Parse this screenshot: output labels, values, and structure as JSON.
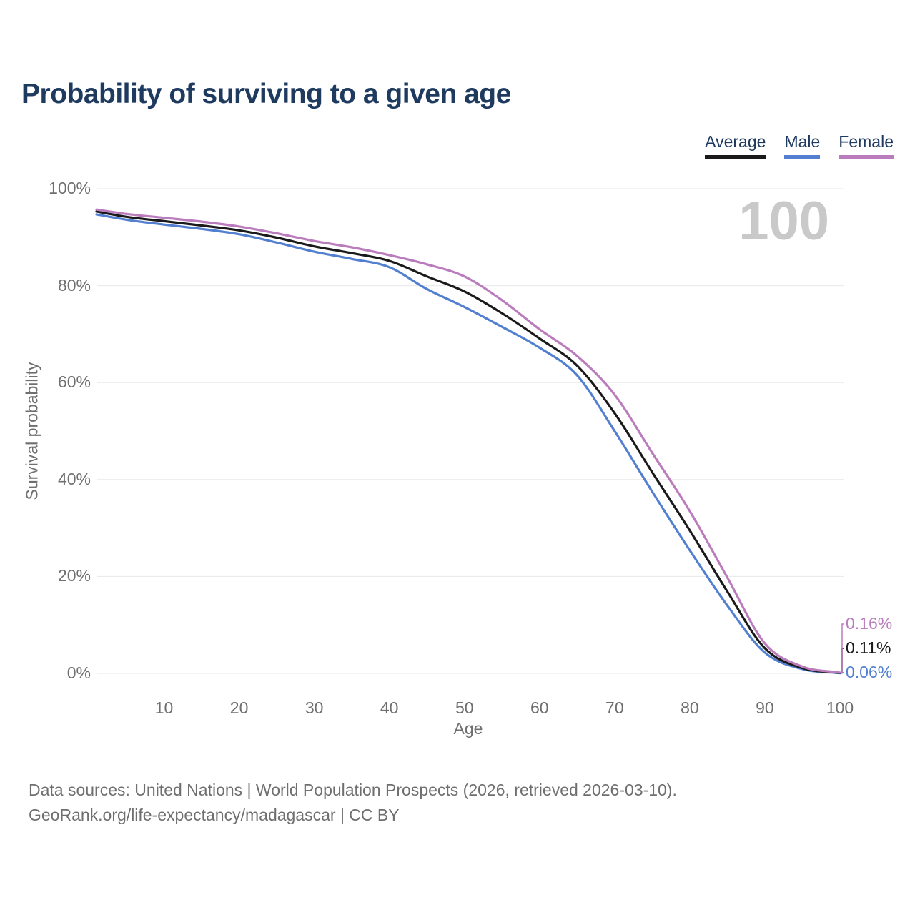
{
  "title": "Probability of surviving to a given age",
  "watermark": "100",
  "legend": {
    "items": [
      {
        "label": "Average",
        "series": "average"
      },
      {
        "label": "Male",
        "series": "male"
      },
      {
        "label": "Female",
        "series": "female"
      }
    ]
  },
  "axes": {
    "y_title": "Survival probability",
    "x_title": "Age",
    "y_ticks": [
      {
        "label": "100%",
        "value": 100
      },
      {
        "label": "80%",
        "value": 80
      },
      {
        "label": "60%",
        "value": 60
      },
      {
        "label": "40%",
        "value": 40
      },
      {
        "label": "20%",
        "value": 20
      },
      {
        "label": "0%",
        "value": 0
      }
    ],
    "x_ticks": [
      {
        "label": "10",
        "value": 10
      },
      {
        "label": "20",
        "value": 20
      },
      {
        "label": "30",
        "value": 30
      },
      {
        "label": "40",
        "value": 40
      },
      {
        "label": "50",
        "value": 50
      },
      {
        "label": "60",
        "value": 60
      },
      {
        "label": "70",
        "value": 70
      },
      {
        "label": "80",
        "value": 80
      },
      {
        "label": "90",
        "value": 90
      },
      {
        "label": "100",
        "value": 100
      }
    ]
  },
  "source": {
    "line1": "Data sources: United Nations | World Population Prospects (2026, retrieved 2026-03-10).",
    "line2": "GeoRank.org/life-expectancy/madagascar | CC BY"
  },
  "colors": {
    "title": "#1e3a5f",
    "grid": "#e8e8e8",
    "tick_text": "#6f6f6f",
    "watermark": "#c9c9c9"
  },
  "chart_data": {
    "type": "line",
    "title": "Probability of surviving to a given age",
    "xlabel": "Age",
    "ylabel": "Survival probability",
    "xlim": [
      1,
      100
    ],
    "ylim": [
      0,
      100
    ],
    "grid": "horizontal",
    "legend_position": "top-right",
    "x": [
      1,
      5,
      10,
      15,
      20,
      25,
      30,
      35,
      40,
      45,
      50,
      55,
      60,
      65,
      70,
      75,
      80,
      85,
      90,
      95,
      100
    ],
    "series": [
      {
        "name": "Average",
        "key": "average",
        "color": "#1a1a1a",
        "end_label": "0.11%",
        "values": [
          95.3,
          94.2,
          93.3,
          92.4,
          91.4,
          89.9,
          88.1,
          86.7,
          85.1,
          81.9,
          78.8,
          74.3,
          69.1,
          63.5,
          53.7,
          41.5,
          29.5,
          16.9,
          5.2,
          1.1,
          0.11
        ]
      },
      {
        "name": "Male",
        "key": "male",
        "color": "#527fd0",
        "end_label": "0.06%",
        "values": [
          94.7,
          93.6,
          92.6,
          91.7,
          90.6,
          88.9,
          87.0,
          85.5,
          83.8,
          79.3,
          75.6,
          71.5,
          67.2,
          61.5,
          50.0,
          37.5,
          25.4,
          14.0,
          4.3,
          0.9,
          0.06
        ]
      },
      {
        "name": "Female",
        "key": "female",
        "color": "#bb7cbd",
        "end_label": "0.16%",
        "values": [
          95.7,
          94.8,
          94.0,
          93.2,
          92.2,
          90.8,
          89.2,
          87.9,
          86.3,
          84.4,
          81.9,
          77.0,
          71.0,
          65.5,
          57.5,
          45.5,
          33.5,
          19.8,
          6.2,
          1.4,
          0.16
        ]
      }
    ]
  }
}
